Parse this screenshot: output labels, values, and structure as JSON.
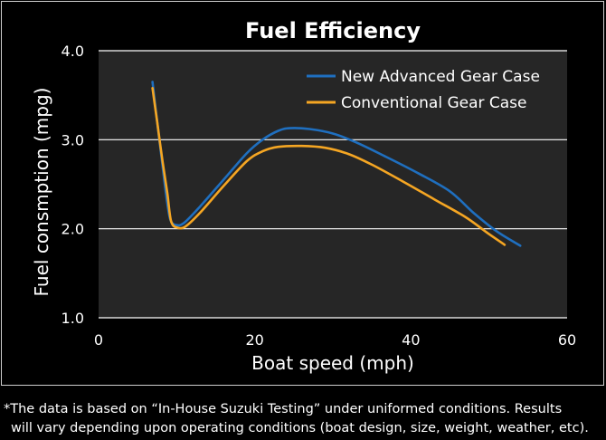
{
  "chart_data": {
    "type": "line",
    "title": "Fuel Efficiency",
    "xlabel": "Boat speed (mph)",
    "ylabel": "Fuel consmption (mpg)",
    "xlim": [
      0,
      60
    ],
    "ylim": [
      1.0,
      4.0
    ],
    "x_ticks": [
      "0",
      "20",
      "40",
      "60"
    ],
    "y_ticks": [
      "1.0",
      "2.0",
      "3.0",
      "4.0"
    ],
    "grid": "horizontal",
    "legend_position": "top-right",
    "series": [
      {
        "name": "New Advanced Gear Case",
        "color": "#1f6fbf",
        "points": [
          [
            6.9,
            3.65
          ],
          [
            7.5,
            3.2
          ],
          [
            8.2,
            2.7
          ],
          [
            8.7,
            2.35
          ],
          [
            9.2,
            2.1
          ],
          [
            10.0,
            2.04
          ],
          [
            11.0,
            2.07
          ],
          [
            13.0,
            2.25
          ],
          [
            16.0,
            2.55
          ],
          [
            19.0,
            2.85
          ],
          [
            21.0,
            3.0
          ],
          [
            23.0,
            3.1
          ],
          [
            24.5,
            3.13
          ],
          [
            27.0,
            3.12
          ],
          [
            30.0,
            3.07
          ],
          [
            33.0,
            2.97
          ],
          [
            37.0,
            2.8
          ],
          [
            41.0,
            2.62
          ],
          [
            45.0,
            2.42
          ],
          [
            48.0,
            2.18
          ],
          [
            51.0,
            1.97
          ],
          [
            54.0,
            1.81
          ]
        ]
      },
      {
        "name": "Conventional Gear Case",
        "color": "#f5a623",
        "points": [
          [
            6.9,
            3.58
          ],
          [
            7.5,
            3.2
          ],
          [
            8.2,
            2.75
          ],
          [
            8.8,
            2.4
          ],
          [
            9.3,
            2.08
          ],
          [
            10.2,
            2.01
          ],
          [
            11.2,
            2.03
          ],
          [
            13.0,
            2.18
          ],
          [
            16.0,
            2.48
          ],
          [
            19.0,
            2.76
          ],
          [
            21.0,
            2.87
          ],
          [
            23.0,
            2.92
          ],
          [
            26.0,
            2.93
          ],
          [
            29.0,
            2.91
          ],
          [
            32.0,
            2.84
          ],
          [
            35.0,
            2.72
          ],
          [
            39.0,
            2.53
          ],
          [
            43.0,
            2.33
          ],
          [
            47.0,
            2.13
          ],
          [
            50.0,
            1.94
          ],
          [
            52.0,
            1.82
          ]
        ]
      }
    ]
  },
  "footnote": {
    "line1": "*The data is based on “In-House Suzuki Testing” under uniformed conditions. Results",
    "line2": "will vary depending upon operating conditions (boat design, size, weight, weather, etc)."
  },
  "colors": {
    "plot_background": "#262626",
    "grid": "#ffffff",
    "background": "#000000"
  }
}
